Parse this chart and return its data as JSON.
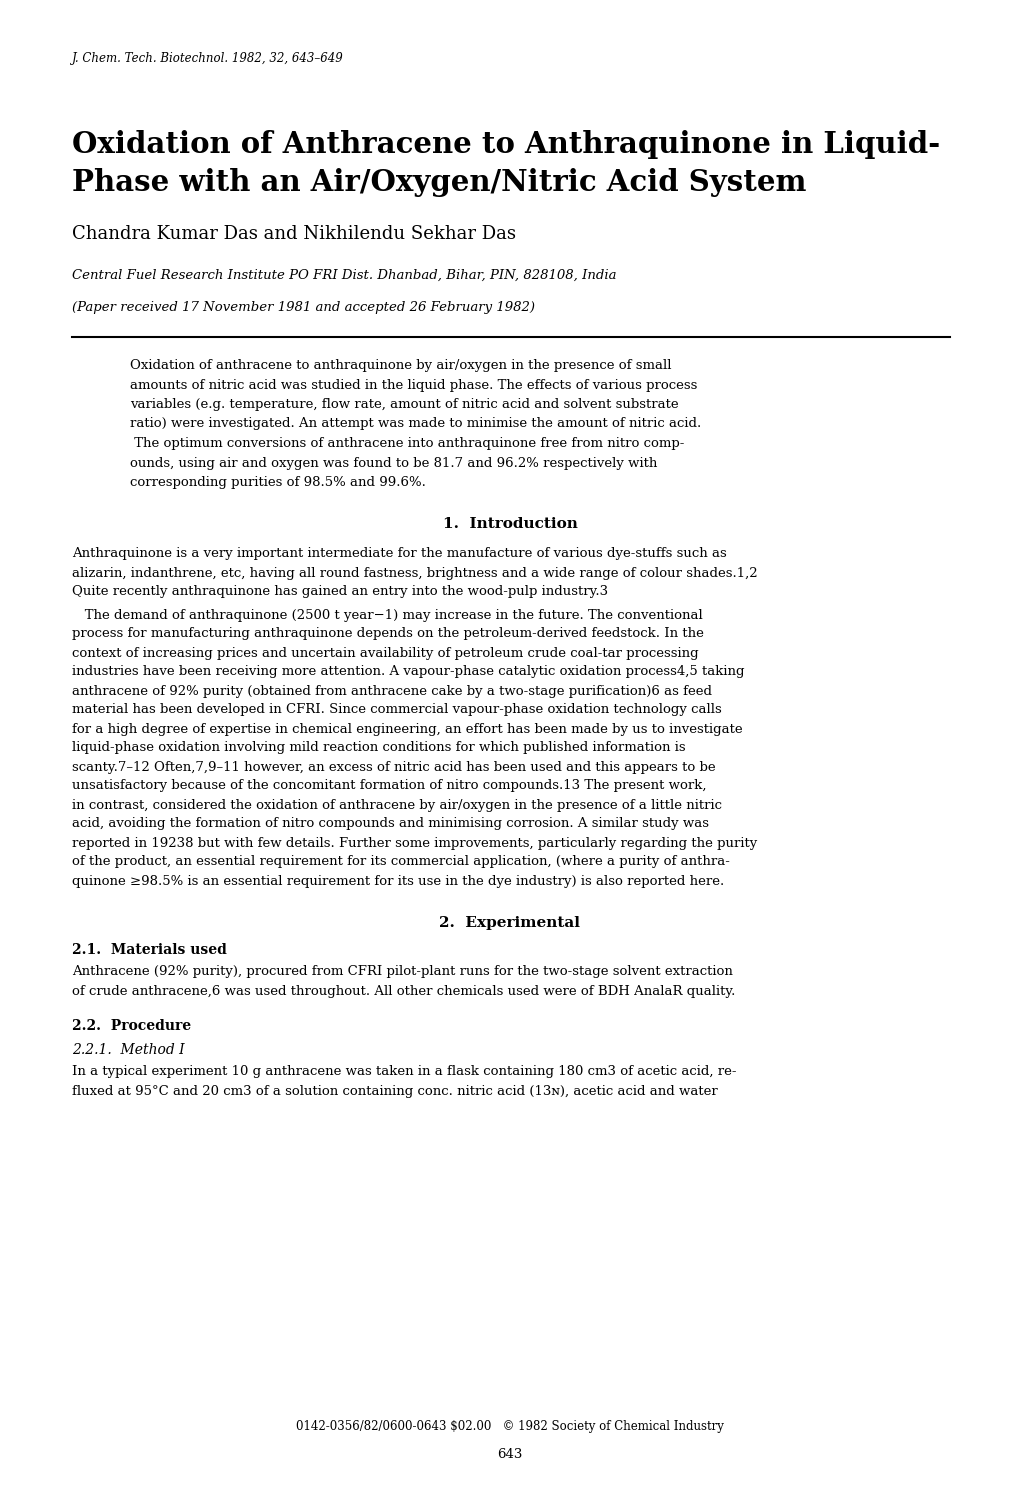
{
  "journal_header": "J. Chem. Tech. Biotechnol. 1982, 32, 643–649",
  "title_line1": "Oxidation of Anthracene to Anthraquinone in Liquid-",
  "title_line2": "Phase with an Air/Oxygen/Nitric Acid System",
  "authors": "Chandra Kumar Das and Nikhilendu Sekhar Das",
  "affiliation": "Central Fuel Research Institute PO FRI Dist. Dhanbad, Bihar, PIN, 828108, India",
  "received": "(Paper received 17 November 1981 and accepted 26 February 1982)",
  "abstract_lines": [
    "Oxidation of anthracene to anthraquinone by air/oxygen in the presence of small",
    "amounts of nitric acid was studied in the liquid phase. The effects of various process",
    "variables (e.g. temperature, flow rate, amount of nitric acid and solvent substrate",
    "ratio) were investigated. An attempt was made to minimise the amount of nitric acid.",
    " The optimum conversions of anthracene into anthraquinone free from nitro comp-",
    "ounds, using air and oxygen was found to be 81.7 and 96.2% respectively with",
    "corresponding purities of 98.5% and 99.6%."
  ],
  "section1_title": "1.  Introduction",
  "intro_para1_lines": [
    "Anthraquinone is a very important intermediate for the manufacture of various dye-stuffs such as",
    "alizarin, indanthrene, etc, having all round fastness, brightness and a wide range of colour shades.1,2",
    "Quite recently anthraquinone has gained an entry into the wood-pulp industry.3"
  ],
  "intro_para2_lines": [
    "   The demand of anthraquinone (2500 t year−1) may increase in the future. The conventional",
    "process for manufacturing anthraquinone depends on the petroleum-derived feedstock. In the",
    "context of increasing prices and uncertain availability of petroleum crude coal-tar processing",
    "industries have been receiving more attention. A vapour-phase catalytic oxidation process4,5 taking",
    "anthracene of 92% purity (obtained from anthracene cake by a two-stage purification)6 as feed",
    "material has been developed in CFRI. Since commercial vapour-phase oxidation technology calls",
    "for a high degree of expertise in chemical engineering, an effort has been made by us to investigate",
    "liquid-phase oxidation involving mild reaction conditions for which published information is",
    "scanty.7–12 Often,7,9–11 however, an excess of nitric acid has been used and this appears to be",
    "unsatisfactory because of the concomitant formation of nitro compounds.13 The present work,",
    "in contrast, considered the oxidation of anthracene by air/oxygen in the presence of a little nitric",
    "acid, avoiding the formation of nitro compounds and minimising corrosion. A similar study was",
    "reported in 19238 but with few details. Further some improvements, particularly regarding the purity",
    "of the product, an essential requirement for its commercial application, (where a purity of anthra-",
    "quinone ≥98.5% is an essential requirement for its use in the dye industry) is also reported here."
  ],
  "section2_title": "2.  Experimental",
  "section21_title": "2.1.  Materials used",
  "materials_lines": [
    "Anthracene (92% purity), procured from CFRI pilot-plant runs for the two-stage solvent extraction",
    "of crude anthracene,6 was used throughout. All other chemicals used were of BDH AnalaR quality."
  ],
  "section22_title": "2.2.  Procedure",
  "section221_title": "2.2.1.  Method I",
  "method1_lines": [
    "In a typical experiment 10 g anthracene was taken in a flask containing 180 cm3 of acetic acid, re-",
    "fluxed at 95°C and 20 cm3 of a solution containing conc. nitric acid (13ɴ), acetic acid and water"
  ],
  "footer_text": "0142-0356/82/0600-0643 $02.00   © 1982 Society of Chemical Industry",
  "page_number": "643",
  "bg_color": "#ffffff",
  "text_color": "#000000"
}
